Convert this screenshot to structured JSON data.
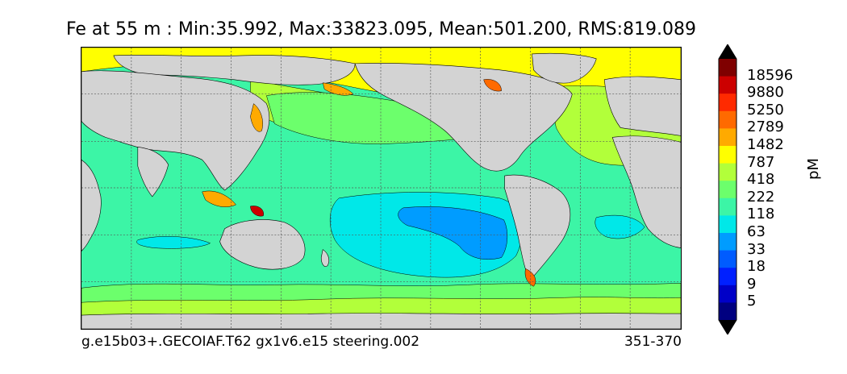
{
  "title": "Fe at 55 m : Min:35.992, Max:33823.095, Mean:501.200, RMS:819.089",
  "footer": {
    "left": "g.e15b03+.GECOIAF.T62 gx1v6.e15 steering.002",
    "right": "351-370"
  },
  "colorbar": {
    "unit": "pM",
    "labels": [
      "18596",
      "9880",
      "5250",
      "2789",
      "1482",
      "787",
      "418",
      "222",
      "118",
      "63",
      "33",
      "18",
      "9",
      "5"
    ],
    "colors": [
      "#7f0000",
      "#cc0000",
      "#ff2a00",
      "#ff6a00",
      "#ffaa00",
      "#ffff00",
      "#b2ff3a",
      "#6cff6c",
      "#3cf5a6",
      "#00e8e8",
      "#009cff",
      "#005cff",
      "#0020ff",
      "#0000c8",
      "#000080"
    ]
  },
  "map": {
    "land_color": "#d3d3d3",
    "grid": true,
    "projection": "cylindrical"
  }
}
